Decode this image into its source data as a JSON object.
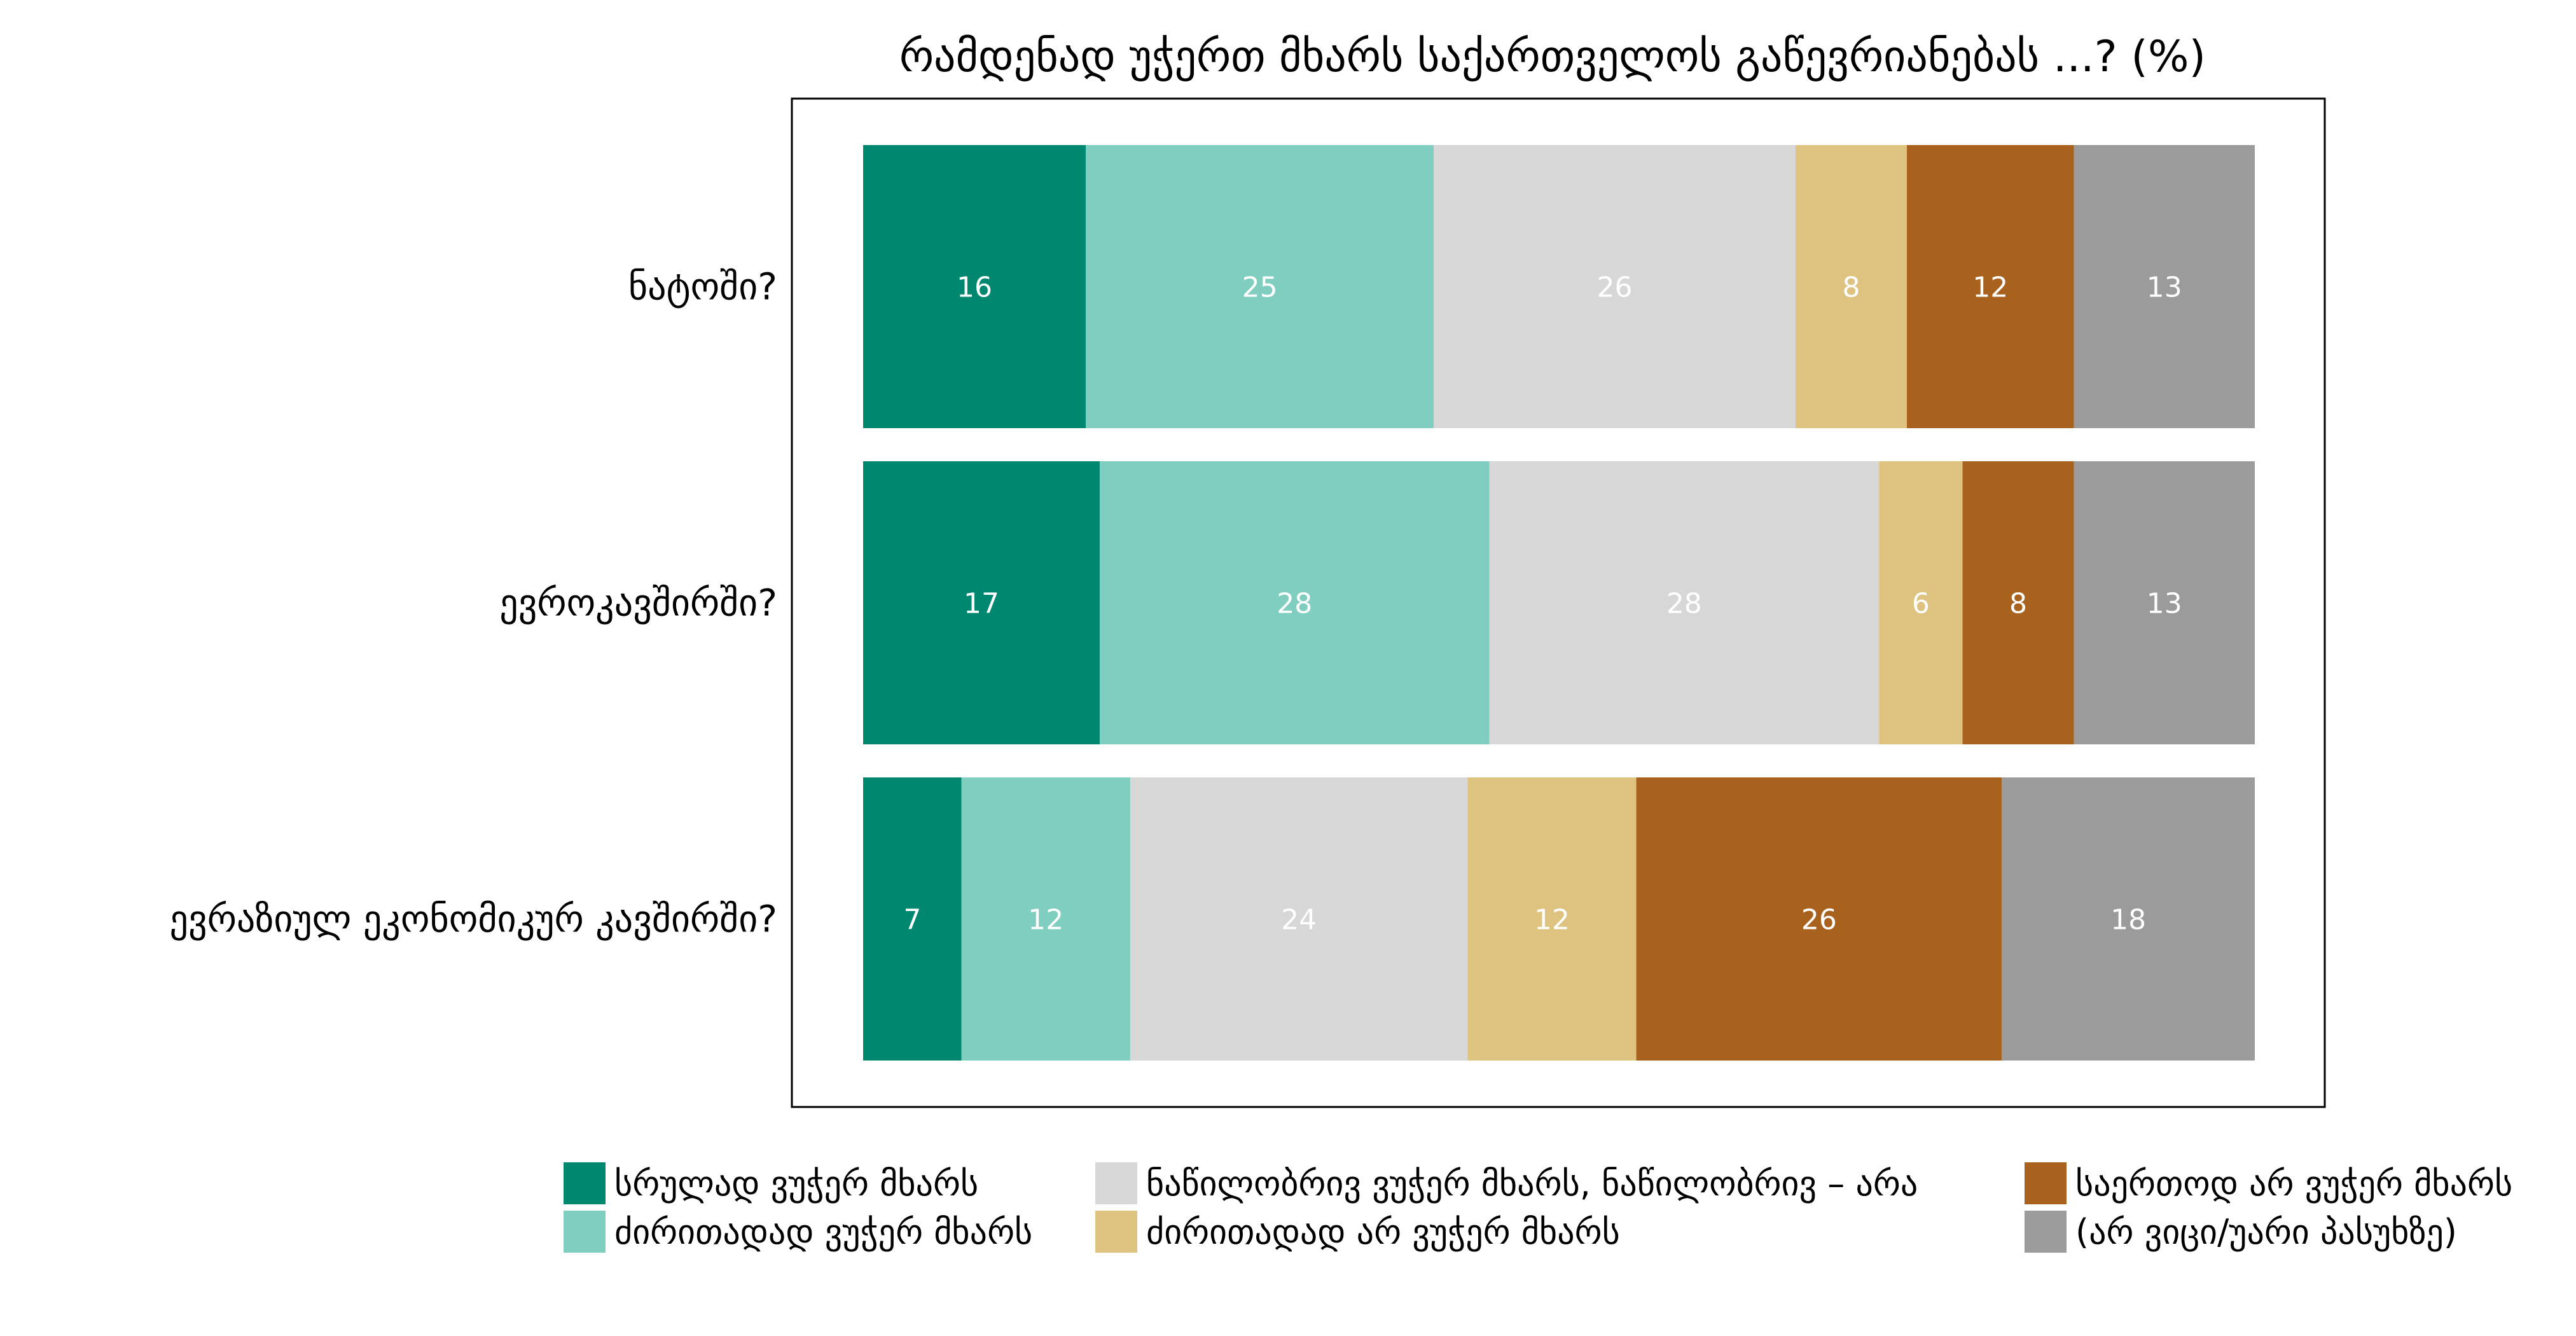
{
  "chart_data": {
    "type": "bar",
    "orientation": "horizontal",
    "stacked": true,
    "title": "რამდენად უჭერთ მხარს საქართველოს გაწევრიანებას ...? (%)",
    "xlabel": "",
    "ylabel": "",
    "categories": [
      "ნატოში?",
      "ევროკავშირში?",
      "ევრაზიულ ეკონომიკურ კავშირში?"
    ],
    "series": [
      {
        "name": "სრულად ვუჭერ მხარს",
        "color": "#00876F",
        "values": [
          16,
          17,
          7
        ]
      },
      {
        "name": "ძირითადად ვუჭერ მხარს",
        "color": "#80CEC0",
        "values": [
          25,
          28,
          12
        ]
      },
      {
        "name": "ნაწილობრივ ვუჭერ მხარს, ნაწილობრივ – არა",
        "color": "#D7D7D7",
        "values": [
          26,
          28,
          24
        ]
      },
      {
        "name": "ძირითადად არ ვუჭერ მხარს",
        "color": "#DEC27F",
        "values": [
          8,
          6,
          12
        ]
      },
      {
        "name": "საერთოდ არ ვუჭერ მხარს",
        "color": "#A8621E",
        "values": [
          12,
          8,
          26
        ]
      },
      {
        "name": "(არ ვიცი/უარი პასუხზე)",
        "color": "#9B9B9B",
        "values": [
          13,
          13,
          18
        ]
      }
    ],
    "legend_position": "bottom",
    "grid": false
  }
}
